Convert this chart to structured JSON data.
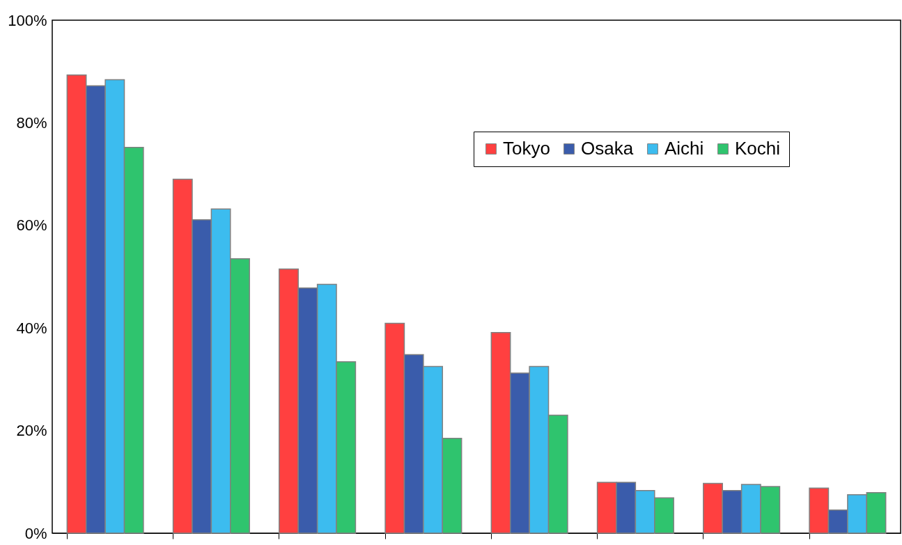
{
  "chart_data": {
    "type": "bar",
    "categories": [
      null,
      null,
      null,
      null,
      null,
      null,
      null,
      null
    ],
    "series": [
      {
        "name": "Tokyo",
        "color": "#ff4040",
        "values": [
          89.3,
          69.0,
          51.5,
          40.9,
          39.1,
          9.9,
          9.7,
          8.8
        ]
      },
      {
        "name": "Osaka",
        "color": "#3a5cab",
        "values": [
          87.2,
          61.1,
          47.8,
          34.8,
          31.2,
          9.9,
          8.3,
          4.5
        ]
      },
      {
        "name": "Aichi",
        "color": "#3cbcef",
        "values": [
          88.4,
          63.2,
          48.5,
          32.5,
          32.5,
          8.3,
          9.5,
          7.5
        ]
      },
      {
        "name": "Kochi",
        "color": "#2fc46e",
        "values": [
          75.2,
          53.5,
          33.4,
          18.5,
          23.0,
          6.9,
          9.1,
          7.9
        ]
      }
    ],
    "ylim": [
      0,
      100
    ],
    "yticks": [
      {
        "value": 0,
        "label": "0%"
      },
      {
        "value": 20,
        "label": "20%"
      },
      {
        "value": 40,
        "label": "40%"
      },
      {
        "value": 60,
        "label": "60%"
      },
      {
        "value": 80,
        "label": "80%"
      },
      {
        "value": 100,
        "label": "100%"
      }
    ],
    "grid": false,
    "legend": "top right",
    "tick_labels": "y"
  }
}
